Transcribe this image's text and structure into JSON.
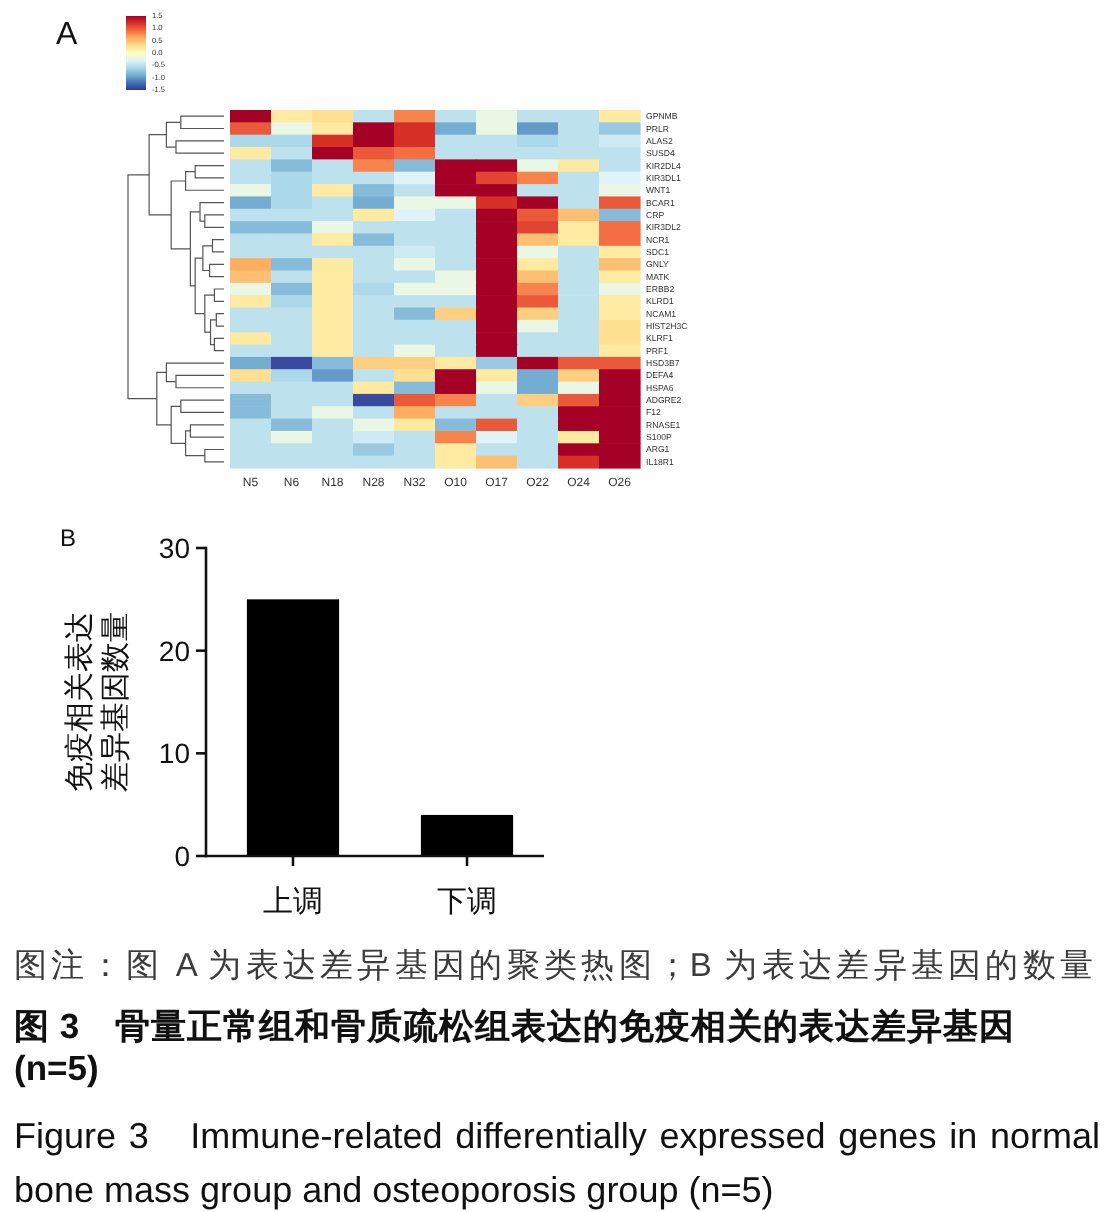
{
  "chart_data": [
    {
      "type": "heatmap",
      "title": "A",
      "categories": [
        "N5",
        "N6",
        "N18",
        "N28",
        "N32",
        "O10",
        "O17",
        "O22",
        "O24",
        "O26"
      ],
      "y_categories": [
        "GPNMB",
        "PRLR",
        "ALAS2",
        "SUSD4",
        "KIR2DL4",
        "KIR3DL1",
        "WNT1",
        "BCAR1",
        "CRP",
        "KIR3DL2",
        "NCR1",
        "SDC1",
        "GNLY",
        "MATK",
        "ERBB2",
        "KLRD1",
        "NCAM1",
        "HIST2H3C",
        "KLRF1",
        "PRF1",
        "HSD3B7",
        "DEFA4",
        "HSPA6",
        "ADGRE2",
        "F12",
        "RNASE1",
        "S100P",
        "ARG1",
        "IL18R1"
      ],
      "cells": [
        [
          1.5,
          0.2,
          0.3,
          -0.5,
          0.8,
          -0.5,
          -0.2,
          -0.5,
          -0.5,
          0.2
        ],
        [
          1.0,
          -0.2,
          0.2,
          1.5,
          1.2,
          -0.9,
          -0.2,
          -1.0,
          -0.5,
          -0.7
        ],
        [
          -0.6,
          -0.6,
          1.2,
          1.5,
          1.2,
          -0.5,
          -0.5,
          -0.6,
          -0.5,
          -0.4
        ],
        [
          0.2,
          -0.5,
          1.5,
          1.0,
          0.9,
          -0.5,
          -0.5,
          -0.5,
          -0.5,
          -0.5
        ],
        [
          -0.5,
          -0.8,
          -0.5,
          0.8,
          -0.8,
          1.5,
          1.5,
          -0.2,
          0.2,
          -0.5
        ],
        [
          -0.5,
          -0.6,
          -0.5,
          -0.5,
          -0.3,
          1.5,
          1.1,
          0.8,
          -0.5,
          -0.3
        ],
        [
          -0.2,
          -0.6,
          0.2,
          -0.8,
          -0.5,
          1.5,
          1.5,
          -0.5,
          -0.5,
          -0.2
        ],
        [
          -0.9,
          -0.6,
          -0.5,
          -0.9,
          -0.2,
          -0.2,
          1.2,
          1.5,
          -0.5,
          1.0
        ],
        [
          -0.5,
          -0.5,
          -0.5,
          0.2,
          -0.3,
          -0.5,
          1.5,
          1.0,
          0.5,
          -0.8
        ],
        [
          -0.8,
          -0.8,
          -0.2,
          -0.5,
          -0.5,
          -0.5,
          1.5,
          1.1,
          0.2,
          0.9
        ],
        [
          -0.5,
          -0.5,
          0.2,
          -0.8,
          -0.5,
          -0.5,
          1.5,
          0.5,
          0.2,
          0.9
        ],
        [
          -0.5,
          -0.5,
          -0.5,
          -0.5,
          -0.4,
          -0.5,
          1.5,
          -0.2,
          -0.5,
          0.2
        ],
        [
          0.6,
          -0.8,
          0.2,
          -0.5,
          -0.2,
          -0.5,
          1.5,
          0.2,
          -0.5,
          0.5
        ],
        [
          0.5,
          -0.5,
          0.2,
          -0.5,
          -0.5,
          -0.2,
          1.5,
          0.5,
          -0.5,
          0.2
        ],
        [
          -0.2,
          -0.8,
          0.2,
          -0.6,
          -0.2,
          -0.2,
          1.5,
          0.8,
          -0.5,
          -0.2
        ],
        [
          0.2,
          -0.6,
          0.2,
          -0.5,
          -0.5,
          -0.5,
          1.5,
          1.0,
          -0.5,
          0.2
        ],
        [
          -0.5,
          -0.5,
          0.2,
          -0.5,
          -0.8,
          0.4,
          1.5,
          0.4,
          -0.5,
          0.2
        ],
        [
          -0.5,
          -0.5,
          0.2,
          -0.5,
          -0.5,
          -0.5,
          1.5,
          -0.2,
          -0.5,
          0.3
        ],
        [
          0.2,
          -0.5,
          0.2,
          -0.5,
          -0.5,
          -0.5,
          1.5,
          -0.5,
          -0.5,
          0.3
        ],
        [
          -0.5,
          -0.5,
          0.2,
          -0.5,
          -0.2,
          -0.5,
          1.5,
          -0.5,
          -0.5,
          0.2
        ],
        [
          -0.9,
          -1.4,
          -0.8,
          0.4,
          0.4,
          0.2,
          -0.7,
          1.5,
          1.0,
          1.0
        ],
        [
          0.3,
          -0.6,
          -1.0,
          -0.5,
          0.3,
          1.5,
          0.2,
          -0.9,
          0.4,
          1.5
        ],
        [
          -0.5,
          -0.5,
          -0.5,
          0.2,
          -0.8,
          1.5,
          -0.2,
          -0.9,
          -0.2,
          1.5
        ],
        [
          -0.8,
          -0.5,
          -0.5,
          -1.4,
          1.0,
          0.8,
          -0.5,
          0.4,
          1.0,
          1.5
        ],
        [
          -0.8,
          -0.5,
          -0.2,
          -0.5,
          0.6,
          -0.5,
          -0.5,
          -0.5,
          1.5,
          1.5
        ],
        [
          -0.5,
          -0.8,
          -0.5,
          -0.2,
          0.2,
          -0.8,
          1.0,
          -0.5,
          1.5,
          1.5
        ],
        [
          -0.5,
          -0.2,
          -0.5,
          -0.4,
          -0.5,
          0.8,
          -0.3,
          -0.5,
          0.2,
          1.5
        ],
        [
          -0.5,
          -0.5,
          -0.5,
          -0.7,
          -0.5,
          0.2,
          -0.5,
          -0.5,
          1.5,
          1.5
        ],
        [
          -0.5,
          -0.5,
          -0.5,
          -0.5,
          -0.5,
          0.2,
          0.5,
          -0.5,
          1.2,
          1.5
        ]
      ],
      "clim": [
        -1.5,
        1.5
      ],
      "cticks": [
        1.5,
        {
          "value": 1,
          "label": "1.0"
        },
        0.5,
        {
          "value": 0,
          "label": "0.0"
        },
        -0.5,
        {
          "value": -1,
          "label": "-1.0"
        },
        -1.5
      ]
    },
    {
      "type": "bar",
      "title": "B",
      "categories": [
        "上调",
        "下调"
      ],
      "values": [
        25,
        4
      ],
      "color": "#000000",
      "ylim": [
        0,
        30
      ],
      "yticks": [
        0,
        10,
        20,
        30
      ],
      "ylabel": "免疫相关表达差异基因数量",
      "annotations": [
        "图注：图 A 为表达差异基因的聚类热图；B 为表达差异基因的数量",
        "图 3　骨量正常组和骨质疏松组表达的免疫相关的表达差异基因 (n=5)",
        "Figure 3　Immune-related differentially expressed genes in normal bone mass group and osteoporosis group (n=5)"
      ]
    }
  ]
}
